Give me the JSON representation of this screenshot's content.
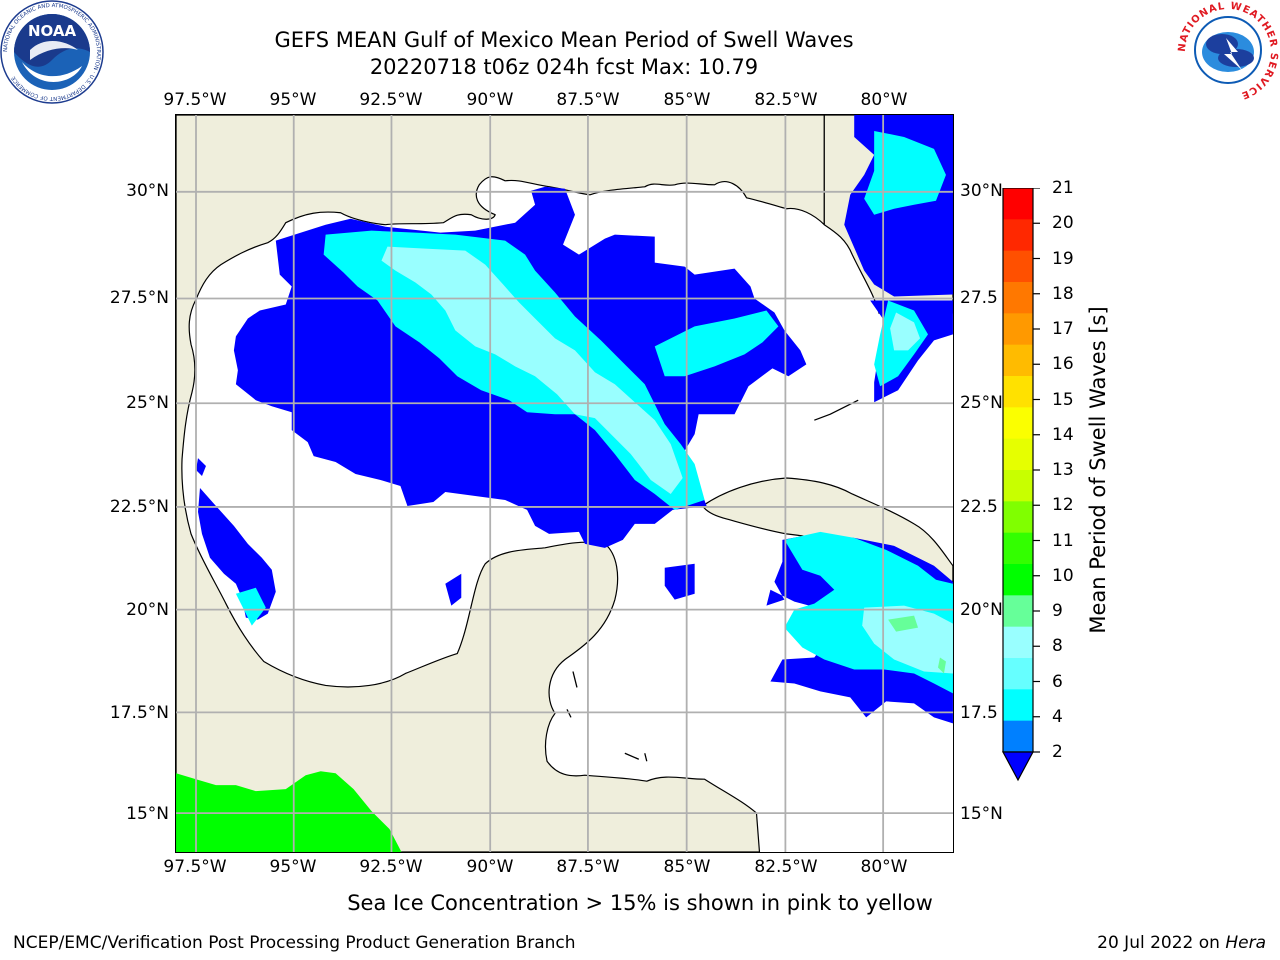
{
  "title": {
    "line1": "GEFS MEAN Gulf of Mexico Mean Period of Swell Waves",
    "line2": "20220718 t06z 024h fcst   Max: 10.79"
  },
  "logos": {
    "left": {
      "name": "noaa-logo",
      "text": "NOAA",
      "ring": "NATIONAL OCEANIC AND ATMOSPHERIC ADMINISTRATION · U.S. DEPARTMENT OF COMMERCE"
    },
    "right": {
      "name": "nws-logo",
      "ring": "NATIONAL WEATHER SERVICE"
    }
  },
  "map": {
    "lon_labels": [
      "97.5°W",
      "95°W",
      "92.5°W",
      "90°W",
      "87.5°W",
      "85°W",
      "82.5°W",
      "80°W"
    ],
    "lat_labels_left": [
      "30°N",
      "27.5°N",
      "25°N",
      "22.5°N",
      "20°N",
      "17.5°N",
      "15°N"
    ],
    "lat_labels_right": [
      "30°N",
      "27.5",
      "25°N",
      "22.5",
      "20°N",
      "17.5",
      "15°N"
    ],
    "colors": {
      "land": "#efeedc",
      "ocean_nodata": "#ffffff",
      "grid": "#b0b0b0",
      "coast": "#000000"
    }
  },
  "colorbar": {
    "label": "Mean Period of Swell Waves [s]",
    "ticks": [
      "21",
      "20",
      "19",
      "18",
      "17",
      "16",
      "15",
      "14",
      "13",
      "12",
      "11",
      "10",
      "9",
      "8",
      "6",
      "4",
      "2"
    ],
    "colors": [
      "#ff0000",
      "#ff2800",
      "#ff5000",
      "#ff7800",
      "#ff9900",
      "#ffbb00",
      "#ffe100",
      "#fbff00",
      "#e6ff00",
      "#c8ff00",
      "#80ff00",
      "#33ff00",
      "#00ff00",
      "#66ff99",
      "#99ffff",
      "#66ffff",
      "#00ffff",
      "#0080ff"
    ],
    "under_color": "#0000ff"
  },
  "footer": {
    "note": "Sea Ice Concentration > 15% is shown in pink to yellow",
    "left": "NCEP/EMC/Verification Post Processing Product Generation Branch",
    "right_date": "20 Jul 2022 on ",
    "right_host": "Hera"
  }
}
